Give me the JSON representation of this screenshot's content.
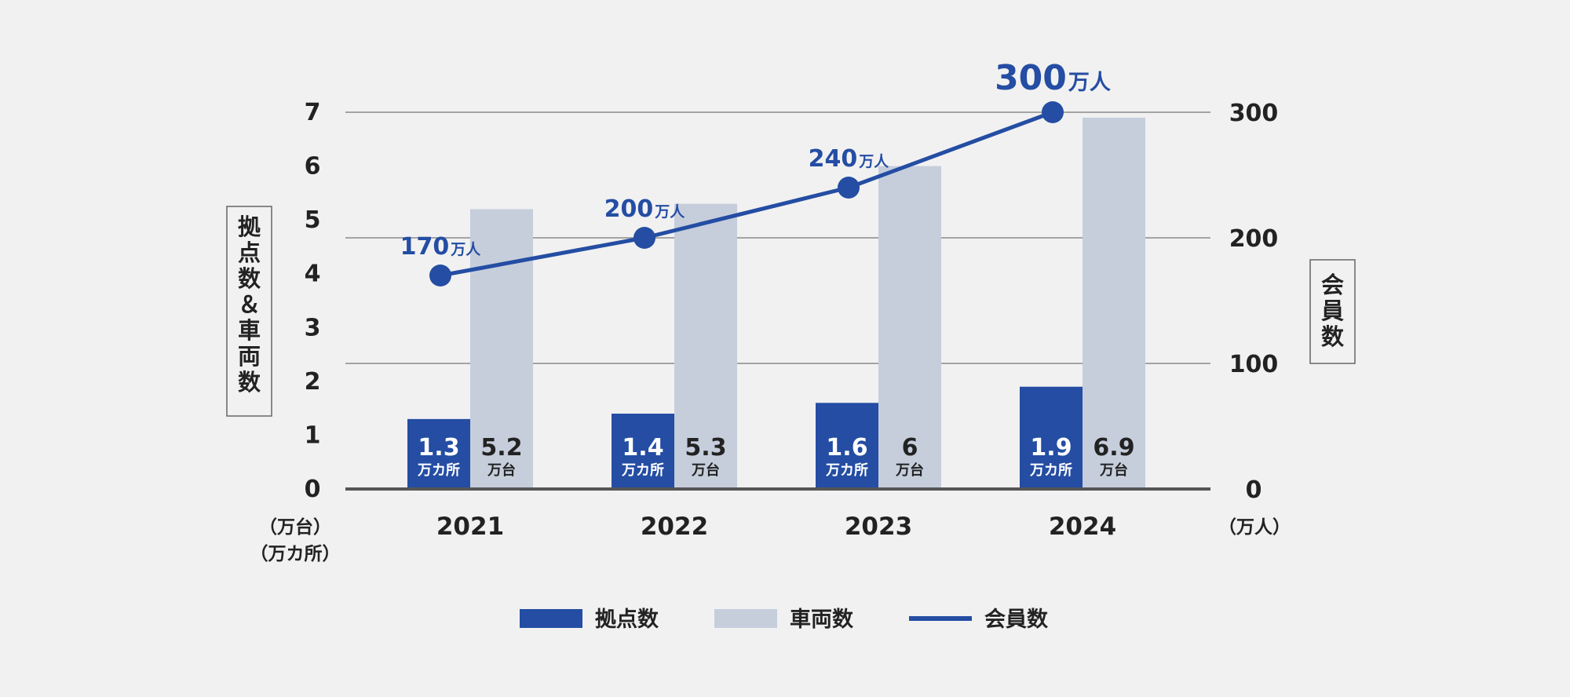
{
  "colors": {
    "primary": "#244da3",
    "secondary": "#c6cedc",
    "grid": "#8a8a8a",
    "axis": "#555555",
    "text": "#222222",
    "background": "#f1f1f1"
  },
  "chart_data": {
    "type": "bar+line",
    "categories": [
      "2021",
      "2022",
      "2023",
      "2024"
    ],
    "left_axis": {
      "title": "拠点数＆車両数",
      "unit_lines": [
        "（万台）",
        "（万カ所）"
      ],
      "ylim": [
        0,
        7
      ],
      "ticks": [
        "0",
        "1",
        "2",
        "3",
        "4",
        "5",
        "6",
        "7"
      ]
    },
    "right_axis": {
      "title": "会員数",
      "unit": "（万人）",
      "ylim": [
        0,
        300
      ],
      "ticks": [
        "0",
        "100",
        "200",
        "300"
      ]
    },
    "gridlines": [
      100,
      200,
      300
    ],
    "series": [
      {
        "name": "拠点数",
        "kind": "bar",
        "axis": "left",
        "values": [
          1.3,
          1.4,
          1.6,
          1.9
        ],
        "labels": [
          "1.3",
          "1.4",
          "1.6",
          "1.9"
        ],
        "unit": "万カ所"
      },
      {
        "name": "車両数",
        "kind": "bar",
        "axis": "left",
        "values": [
          5.2,
          5.3,
          6,
          6.9
        ],
        "labels": [
          "5.2",
          "5.3",
          "6",
          "6.9"
        ],
        "unit": "万台"
      },
      {
        "name": "会員数",
        "kind": "line",
        "axis": "right",
        "values": [
          170,
          200,
          240,
          300
        ],
        "labels": [
          "170",
          "200",
          "240",
          "300"
        ],
        "unit": "万人"
      }
    ],
    "legend": {
      "position": "bottom",
      "items": [
        "拠点数",
        "車両数",
        "会員数"
      ]
    }
  }
}
